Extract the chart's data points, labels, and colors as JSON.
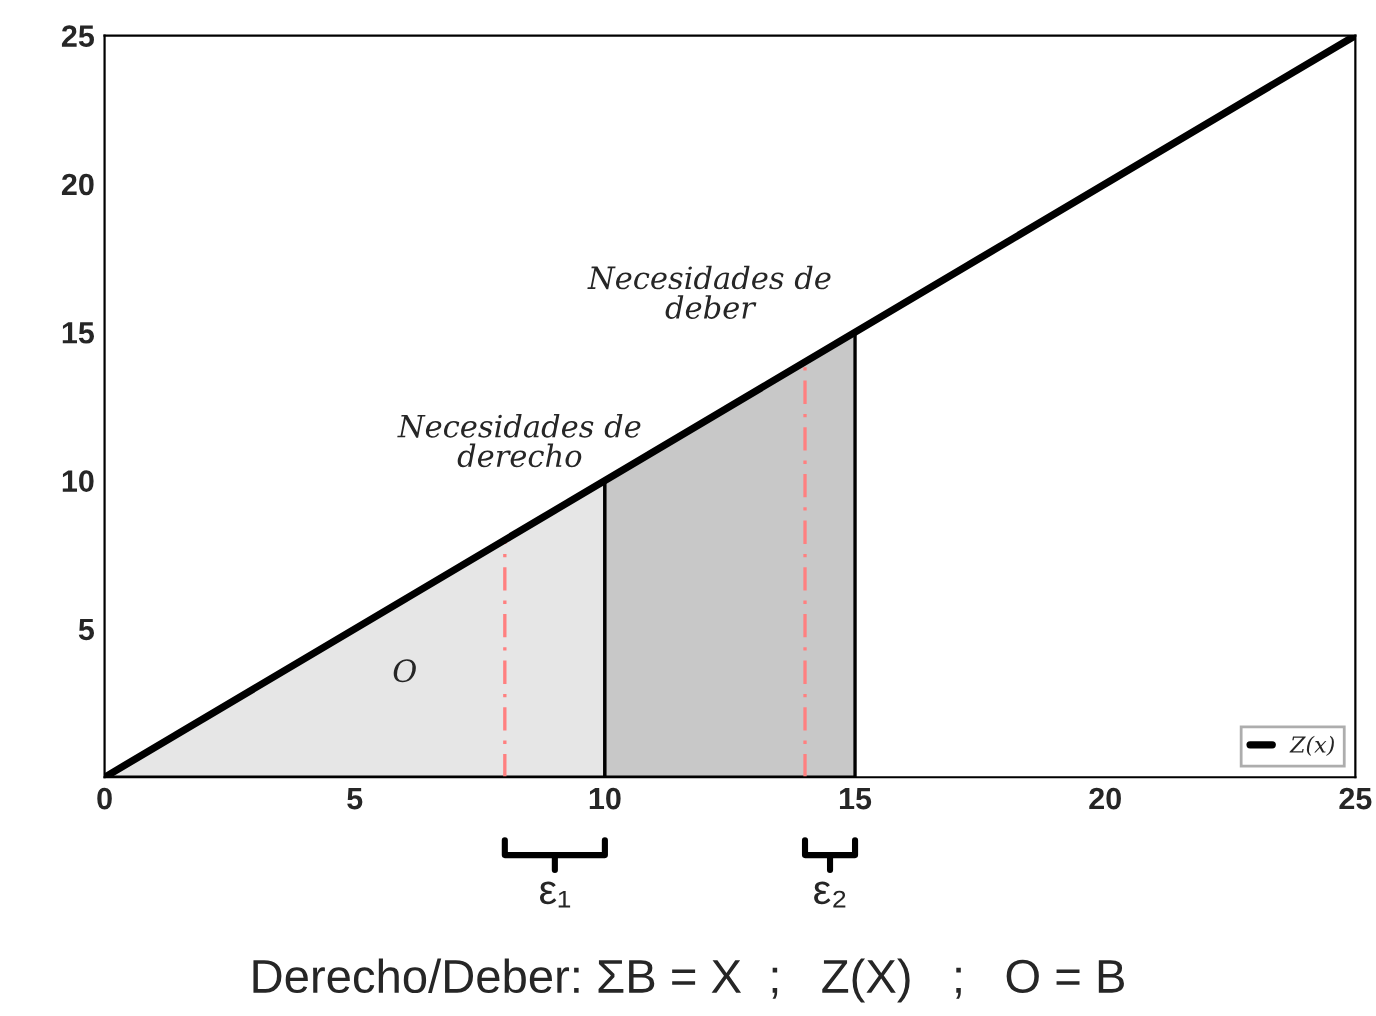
{
  "chart_data": {
    "type": "line",
    "xlim": [
      0,
      25
    ],
    "ylim": [
      0,
      25
    ],
    "xticks": [
      0,
      5,
      10,
      15,
      20,
      25
    ],
    "yticks": [
      5,
      10,
      15,
      20,
      25
    ],
    "grid": false,
    "legend": "bottom right",
    "series": [
      {
        "type": "area",
        "color": "#e6e6e6",
        "x": [
          0,
          10
        ],
        "values": [
          0,
          10
        ]
      },
      {
        "type": "area",
        "color": "#c8c8c8",
        "x": [
          10,
          15
        ],
        "values": [
          10,
          15
        ]
      },
      {
        "type": "line",
        "color": "#ff8080",
        "line_style": "dashed",
        "x": [
          8,
          8
        ],
        "values": [
          0,
          8
        ]
      },
      {
        "type": "line",
        "color": "#ff8080",
        "line_style": "dashed",
        "x": [
          14,
          14
        ],
        "values": [
          0,
          14
        ]
      },
      {
        "name": "Z(x)",
        "color": "#000000",
        "line_style": "solid",
        "x": [
          0,
          25
        ],
        "values": [
          0,
          25
        ]
      }
    ],
    "annotations": [
      "Necesidades de\nderecho",
      "Necesidades de\ndeber",
      "O",
      "ε₁",
      "ε₂",
      "Derecho/Deber: ΣB = X  ;   Z(X)   ;   O = B"
    ]
  }
}
